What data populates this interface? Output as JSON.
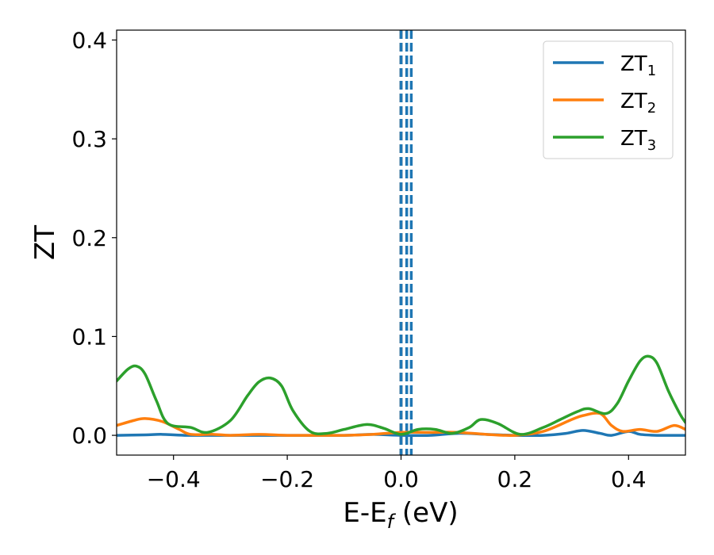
{
  "chart_data": {
    "type": "line",
    "title": "",
    "xlabel_main": "E-E",
    "xlabel_sub": "f",
    "xlabel_unit": " (eV)",
    "ylabel": "ZT",
    "xlim": [
      -0.5,
      0.5
    ],
    "ylim": [
      -0.02,
      0.41
    ],
    "grid": false,
    "legend_position": "top-right",
    "xticks": [
      -0.4,
      -0.2,
      0.0,
      0.2,
      0.4
    ],
    "xtick_labels": [
      "−0.4",
      "−0.2",
      "0.0",
      "0.2",
      "0.4"
    ],
    "yticks": [
      0.0,
      0.1,
      0.2,
      0.3,
      0.4
    ],
    "ytick_labels": [
      "0.0",
      "0.1",
      "0.2",
      "0.3",
      "0.4"
    ],
    "series": [
      {
        "name_main": "ZT",
        "name_sub": "1",
        "color": "#1f77b4",
        "x": [
          -0.5,
          -0.45,
          -0.42,
          -0.38,
          -0.3,
          -0.2,
          -0.1,
          -0.05,
          0.0,
          0.05,
          0.1,
          0.15,
          0.2,
          0.25,
          0.29,
          0.32,
          0.35,
          0.37,
          0.4,
          0.42,
          0.45,
          0.5
        ],
        "y": [
          0.0,
          0.0005,
          0.001,
          0.0,
          0.0,
          0.0,
          0.0,
          0.001,
          0.0,
          0.0,
          0.002,
          0.001,
          0.0,
          0.0,
          0.002,
          0.005,
          0.002,
          0.0,
          0.004,
          0.001,
          0.0,
          0.0
        ]
      },
      {
        "name_main": "ZT",
        "name_sub": "2",
        "color": "#ff7f0e",
        "x": [
          -0.5,
          -0.47,
          -0.45,
          -0.42,
          -0.39,
          -0.37,
          -0.33,
          -0.3,
          -0.25,
          -0.2,
          -0.15,
          -0.1,
          -0.05,
          0.0,
          0.05,
          0.1,
          0.15,
          0.2,
          0.25,
          0.3,
          0.32,
          0.35,
          0.37,
          0.39,
          0.42,
          0.45,
          0.48,
          0.5
        ],
        "y": [
          0.01,
          0.015,
          0.017,
          0.014,
          0.006,
          0.001,
          0.001,
          0.0,
          0.001,
          0.0,
          0.0,
          0.0,
          0.001,
          0.003,
          0.003,
          0.003,
          0.001,
          0.0,
          0.004,
          0.016,
          0.02,
          0.022,
          0.01,
          0.004,
          0.006,
          0.004,
          0.01,
          0.006
        ]
      },
      {
        "name_main": "ZT",
        "name_sub": "3",
        "color": "#2ca02c",
        "x": [
          -0.5,
          -0.48,
          -0.465,
          -0.45,
          -0.43,
          -0.41,
          -0.37,
          -0.34,
          -0.3,
          -0.27,
          -0.25,
          -0.23,
          -0.21,
          -0.19,
          -0.16,
          -0.13,
          -0.1,
          -0.06,
          -0.03,
          0.0,
          0.03,
          0.06,
          0.09,
          0.12,
          0.14,
          0.17,
          0.21,
          0.25,
          0.28,
          0.31,
          0.33,
          0.36,
          0.38,
          0.4,
          0.42,
          0.435,
          0.45,
          0.47,
          0.49,
          0.5
        ],
        "y": [
          0.055,
          0.067,
          0.07,
          0.062,
          0.035,
          0.012,
          0.008,
          0.003,
          0.015,
          0.04,
          0.054,
          0.058,
          0.05,
          0.025,
          0.004,
          0.002,
          0.006,
          0.011,
          0.007,
          0.001,
          0.006,
          0.006,
          0.002,
          0.008,
          0.016,
          0.012,
          0.001,
          0.008,
          0.016,
          0.024,
          0.027,
          0.022,
          0.032,
          0.055,
          0.075,
          0.08,
          0.073,
          0.045,
          0.022,
          0.013
        ]
      }
    ],
    "vlines": [
      {
        "x": 0.0,
        "style": "dashed",
        "color": "#000000"
      },
      {
        "x": 0.0,
        "style": "dashed",
        "color": "#1f77b4"
      },
      {
        "x": 0.01,
        "style": "dashed",
        "color": "#1f77b4"
      },
      {
        "x": 0.018,
        "style": "dashed",
        "color": "#1f77b4"
      }
    ]
  }
}
